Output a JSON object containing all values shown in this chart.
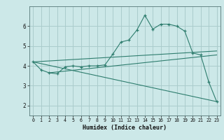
{
  "title": "",
  "xlabel": "Humidex (Indice chaleur)",
  "bg_color": "#cce8e8",
  "grid_color": "#aacccc",
  "line_color": "#2e7d6e",
  "x_hours": [
    0,
    1,
    2,
    3,
    4,
    5,
    6,
    7,
    8,
    9,
    10,
    11,
    12,
    13,
    14,
    15,
    16,
    17,
    18,
    19,
    20,
    21,
    22,
    23
  ],
  "curve_y": [
    4.2,
    3.8,
    3.65,
    3.6,
    3.95,
    4.0,
    3.95,
    4.0,
    4.0,
    4.05,
    4.6,
    5.2,
    5.3,
    5.8,
    6.55,
    5.85,
    6.1,
    6.1,
    6.0,
    5.75,
    4.65,
    4.55,
    3.2,
    2.2
  ],
  "line1_x": [
    0,
    23
  ],
  "line1_y": [
    4.2,
    4.75
  ],
  "line2_x": [
    0,
    23
  ],
  "line2_y": [
    4.2,
    2.2
  ],
  "line3_x": [
    2,
    23
  ],
  "line3_y": [
    3.65,
    4.55
  ],
  "ylim": [
    1.5,
    7.0
  ],
  "xlim": [
    -0.5,
    23.5
  ],
  "yticks": [
    2,
    3,
    4,
    5,
    6
  ],
  "xticks": [
    0,
    1,
    2,
    3,
    4,
    5,
    6,
    7,
    8,
    9,
    10,
    11,
    12,
    13,
    14,
    15,
    16,
    17,
    18,
    19,
    20,
    21,
    22,
    23
  ]
}
